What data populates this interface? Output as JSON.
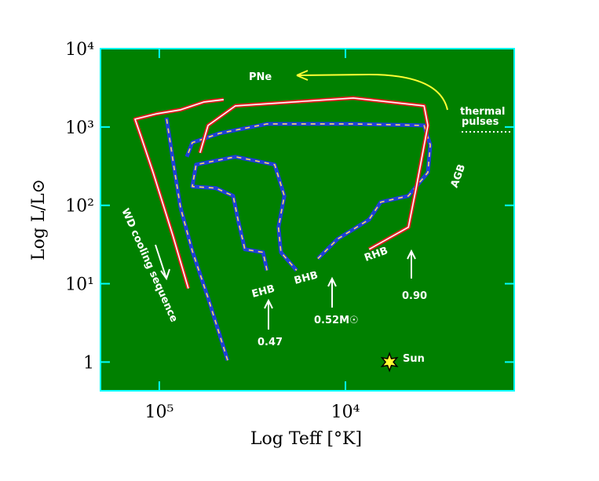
{
  "chart_data": {
    "type": "line",
    "xlabel": "Log Teff [°K]",
    "ylabel": "Log L/L⊙",
    "xscale": "log",
    "yscale": "log",
    "xlim": [
      207000,
      1240
    ],
    "ylim": [
      0.43,
      10000
    ],
    "xticks": [
      {
        "value": 100000,
        "label": "10⁵"
      },
      {
        "value": 10000,
        "label": "10⁴"
      }
    ],
    "yticks": [
      1,
      {
        "value": 10,
        "label": "10¹"
      },
      {
        "value": 100,
        "label": "10²"
      },
      {
        "value": 1000,
        "label": "10³"
      },
      {
        "value": 10000,
        "label": "10⁴"
      }
    ],
    "background": "#008000",
    "frame_color": "#00ffff",
    "series": [
      {
        "color": "#1f3fd8",
        "dash_color": "#ffd966",
        "x": [
          42950,
          54700,
          66500,
          76900,
          83200,
          91600
        ],
        "values": [
          1.05,
          6.6,
          26.3,
          93,
          295,
          1318
        ]
      },
      {
        "color": "#1f3fd8",
        "dash_color": "#ffd966",
        "x": [
          26400,
          27700,
          34700,
          37800,
          40100,
          49700,
          66500,
          63400,
          39000,
          24000,
          21300,
          22900,
          22200,
          18300
        ],
        "values": [
          14.8,
          25.1,
          27.5,
          66,
          132,
          166,
          174,
          331,
          417,
          331,
          132,
          52.5,
          25.1,
          14.8
        ]
      },
      {
        "color": "#1f3fd8",
        "dash_color": "#ffd966",
        "x": [
          14060,
          11020,
          7460,
          6460,
          4590,
          3610,
          3500,
          3780,
          9080,
          26400,
          47300,
          66500,
          71100
        ],
        "values": [
          20.9,
          37.2,
          66,
          110,
          132,
          263,
          589,
          1047,
          1096,
          1096,
          832,
          631,
          417
        ]
      },
      {
        "color": "#e02020",
        "dash_color": "#ffffff",
        "x": [
          69800,
          84700,
          108000,
          125000,
          135000,
          103000,
          76900,
          57400,
          45100
        ],
        "values": [
          8.7,
          41.7,
          263,
          741,
          1259,
          1479,
          1660,
          2089,
          2239
        ]
      },
      {
        "color": "#e02020",
        "dash_color": "#ffffff",
        "x": [
          7460,
          4590,
          4170,
          3610,
          3780,
          9080,
          39000,
          54700,
          60400
        ],
        "values": [
          27.5,
          52.5,
          166,
          1047,
          1862,
          2344,
          1862,
          1047,
          468
        ]
      }
    ],
    "sun": {
      "x": 5800,
      "y": 1,
      "label": "Sun"
    },
    "annotations": [
      "PNe",
      "thermal",
      "pulses",
      "AGB",
      "RHB",
      "BHB",
      "EHB",
      "WD cooling sequence",
      "0.47",
      "0.52M☉",
      "0.90"
    ]
  }
}
